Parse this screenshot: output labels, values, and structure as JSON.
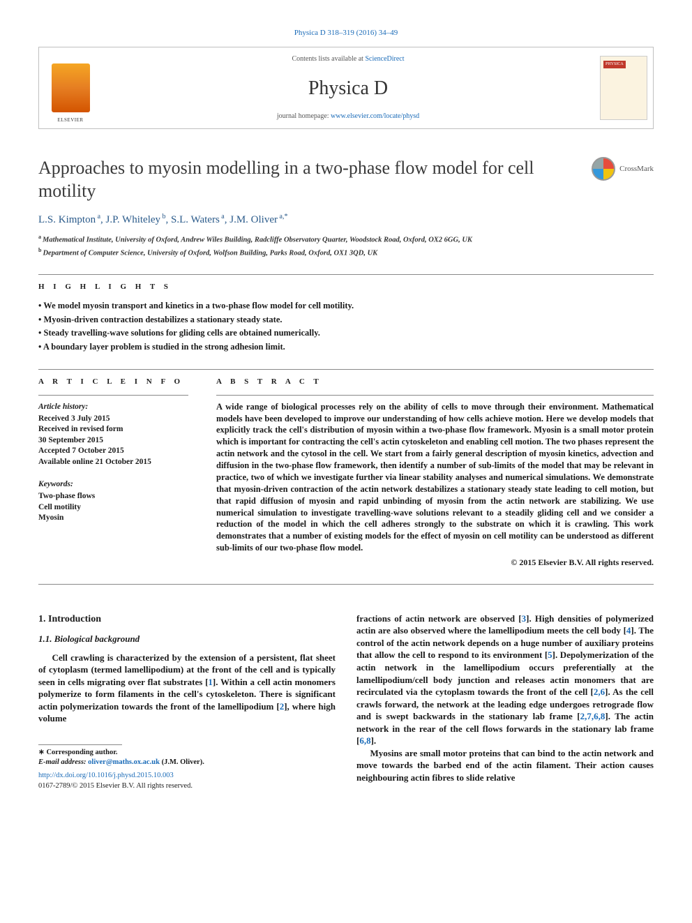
{
  "top_citation": "Physica D 318–319 (2016) 34–49",
  "header": {
    "contents_prefix": "Contents lists available at ",
    "contents_link": "ScienceDirect",
    "journal": "Physica D",
    "homepage_prefix": "journal homepage: ",
    "homepage_link": "www.elsevier.com/locate/physd"
  },
  "publisher_logo_alt": "Elsevier",
  "crossmark_label": "CrossMark",
  "title": "Approaches to myosin modelling in a two-phase flow model for cell motility",
  "authors_html": "L.S. Kimpton<sup>a</sup>, J.P. Whiteley<sup>b</sup>, S.L. Waters<sup>a</sup>, J.M. Oliver<sup>a,*</sup>",
  "authors": [
    {
      "name": "L.S. Kimpton",
      "aff": "a"
    },
    {
      "name": "J.P. Whiteley",
      "aff": "b"
    },
    {
      "name": "S.L. Waters",
      "aff": "a"
    },
    {
      "name": "J.M. Oliver",
      "aff": "a,*"
    }
  ],
  "affiliations": [
    {
      "sup": "a",
      "text": "Mathematical Institute, University of Oxford, Andrew Wiles Building, Radcliffe Observatory Quarter, Woodstock Road, Oxford, OX2 6GG, UK"
    },
    {
      "sup": "b",
      "text": "Department of Computer Science, University of Oxford, Wolfson Building, Parks Road, Oxford, OX1 3QD, UK"
    }
  ],
  "highlights": {
    "label": "H I G H L I G H T S",
    "items": [
      "We model myosin transport and kinetics in a two-phase flow model for cell motility.",
      "Myosin-driven contraction destabilizes a stationary steady state.",
      "Steady travelling-wave solutions for gliding cells are obtained numerically.",
      "A boundary layer problem is studied in the strong adhesion limit."
    ]
  },
  "article_info": {
    "label": "A R T I C L E   I N F O",
    "history_heading": "Article history:",
    "history": [
      "Received 3 July 2015",
      "Received in revised form",
      "30 September 2015",
      "Accepted 7 October 2015",
      "Available online 21 October 2015"
    ],
    "keywords_heading": "Keywords:",
    "keywords": [
      "Two-phase flows",
      "Cell motility",
      "Myosin"
    ]
  },
  "abstract": {
    "label": "A B S T R A C T",
    "text": "A wide range of biological processes rely on the ability of cells to move through their environment. Mathematical models have been developed to improve our understanding of how cells achieve motion. Here we develop models that explicitly track the cell's distribution of myosin within a two-phase flow framework. Myosin is a small motor protein which is important for contracting the cell's actin cytoskeleton and enabling cell motion. The two phases represent the actin network and the cytosol in the cell. We start from a fairly general description of myosin kinetics, advection and diffusion in the two-phase flow framework, then identify a number of sub-limits of the model that may be relevant in practice, two of which we investigate further via linear stability analyses and numerical simulations. We demonstrate that myosin-driven contraction of the actin network destabilizes a stationary steady state leading to cell motion, but that rapid diffusion of myosin and rapid unbinding of myosin from the actin network are stabilizing. We use numerical simulation to investigate travelling-wave solutions relevant to a steadily gliding cell and we consider a reduction of the model in which the cell adheres strongly to the substrate on which it is crawling. This work demonstrates that a number of existing models for the effect of myosin on cell motility can be understood as different sub-limits of our two-phase flow model.",
    "copyright": "© 2015 Elsevier B.V. All rights reserved."
  },
  "body": {
    "section_num": "1.",
    "section_title": "Introduction",
    "subsection_num": "1.1.",
    "subsection_title": "Biological background",
    "p1_pre": "Cell crawling is characterized by the extension of a persistent, flat sheet of cytoplasm (termed lamellipodium) at the front of the cell and is typically seen in cells migrating over flat substrates [",
    "p1_ref1": "1",
    "p1_mid1": "]. Within a cell actin monomers polymerize to form filaments in the cell's cytoskeleton. There is significant actin polymerization towards the front of the lamellipodium [",
    "p1_ref2": "2",
    "p1_post": "], where high volume",
    "p2_pre": "fractions of actin network are observed [",
    "p2_r3": "3",
    "p2_m1": "]. High densities of polymerized actin are also observed where the lamellipodium meets the cell body [",
    "p2_r4": "4",
    "p2_m2": "]. The control of the actin network depends on a huge number of auxiliary proteins that allow the cell to respond to its environment [",
    "p2_r5": "5",
    "p2_m3": "]. Depolymerization of the actin network in the lamellipodium occurs preferentially at the lamellipodium/cell body junction and releases actin monomers that are recirculated via the cytoplasm towards the front of the cell [",
    "p2_r26": "2,6",
    "p2_m4": "]. As the cell crawls forward, the network at the leading edge undergoes retrograde flow and is swept backwards in the stationary lab frame [",
    "p2_r2768": "2,7,6,8",
    "p2_m5": "]. The actin network in the rear of the cell flows forwards in the stationary lab frame [",
    "p2_r68": "6,8",
    "p2_post": "].",
    "p3": "Myosins are small motor proteins that can bind to the actin network and move towards the barbed end of the actin filament. Their action causes neighbouring actin fibres to slide relative"
  },
  "footnote": {
    "corr_label": "Corresponding author.",
    "email_label": "E-mail address: ",
    "email": "oliver@maths.ox.ac.uk",
    "email_paren": " (J.M. Oliver).",
    "doi": "http://dx.doi.org/10.1016/j.physd.2015.10.003",
    "issn_line": "0167-2789/© 2015 Elsevier B.V. All rights reserved."
  },
  "colors": {
    "link": "#1a6bb8",
    "text": "#1a1a1a",
    "author": "#2a5a8a",
    "rule": "#888888"
  }
}
